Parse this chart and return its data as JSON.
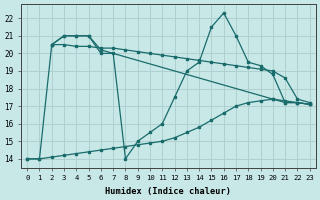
{
  "background_color": "#c8e8e8",
  "grid_color": "#b0cfcf",
  "line_color": "#1a6b6b",
  "xlabel": "Humidex (Indice chaleur)",
  "ylim": [
    13.5,
    22.8
  ],
  "xlim": [
    -0.5,
    23.5
  ],
  "yticks": [
    14,
    15,
    16,
    17,
    18,
    19,
    20,
    21,
    22
  ],
  "xticks": [
    0,
    1,
    2,
    3,
    4,
    5,
    6,
    7,
    8,
    9,
    10,
    11,
    12,
    13,
    14,
    15,
    16,
    17,
    18,
    19,
    20,
    21,
    22,
    23
  ],
  "series": [
    {
      "comment": "Zigzag line: 0=14, 1=14, 2=20.5, 3=21, 4=21, 5=21, 6=20, 7=20, 8=14, 9=15, 10=15.5, 11=16, 12=17.5, 13=19, 14=19.5, 15=21.5, 16=22.3, 17=21, 18=19.5, 19=19.3, 20=18.8, 21=17.2, 22=17.2, 23=17.1",
      "x": [
        0,
        1,
        2,
        3,
        4,
        5,
        6,
        7,
        8,
        9,
        10,
        11,
        12,
        13,
        14,
        15,
        16,
        17,
        18,
        19,
        20,
        21,
        22,
        23
      ],
      "y": [
        14,
        14,
        20.5,
        21,
        21,
        21,
        20,
        20,
        14,
        15.0,
        15.5,
        16.0,
        17.5,
        19.0,
        19.5,
        21.5,
        22.3,
        21.0,
        19.5,
        19.3,
        18.8,
        17.2,
        17.2,
        17.1
      ]
    },
    {
      "x": [
        2,
        3,
        4,
        5,
        6,
        7,
        8,
        9,
        10,
        11,
        12,
        13,
        14,
        15,
        16,
        17,
        18,
        19,
        20,
        21,
        22,
        23
      ],
      "y": [
        20.5,
        20.5,
        20.4,
        20.4,
        20.3,
        20.3,
        20.2,
        20.1,
        20.0,
        19.9,
        19.8,
        19.7,
        19.6,
        19.5,
        19.4,
        19.3,
        19.2,
        19.1,
        19.0,
        18.6,
        17.4,
        17.2
      ]
    },
    {
      "x": [
        0,
        1,
        2,
        3,
        4,
        5,
        6,
        7,
        8,
        9,
        10,
        11,
        12,
        13,
        14,
        15,
        16,
        17,
        18,
        19,
        20,
        21,
        22,
        23
      ],
      "y": [
        14,
        14,
        14.1,
        14.2,
        14.3,
        14.4,
        14.5,
        14.6,
        14.7,
        14.8,
        14.9,
        15.0,
        15.2,
        15.5,
        15.8,
        16.2,
        16.6,
        17.0,
        17.2,
        17.3,
        17.4,
        17.2,
        17.2,
        17.1
      ]
    },
    {
      "x": [
        2,
        3,
        4,
        5,
        6,
        20,
        21,
        22,
        23
      ],
      "y": [
        20.5,
        21.0,
        21.0,
        21.0,
        20.2,
        17.4,
        17.3,
        17.2,
        17.1
      ]
    }
  ]
}
